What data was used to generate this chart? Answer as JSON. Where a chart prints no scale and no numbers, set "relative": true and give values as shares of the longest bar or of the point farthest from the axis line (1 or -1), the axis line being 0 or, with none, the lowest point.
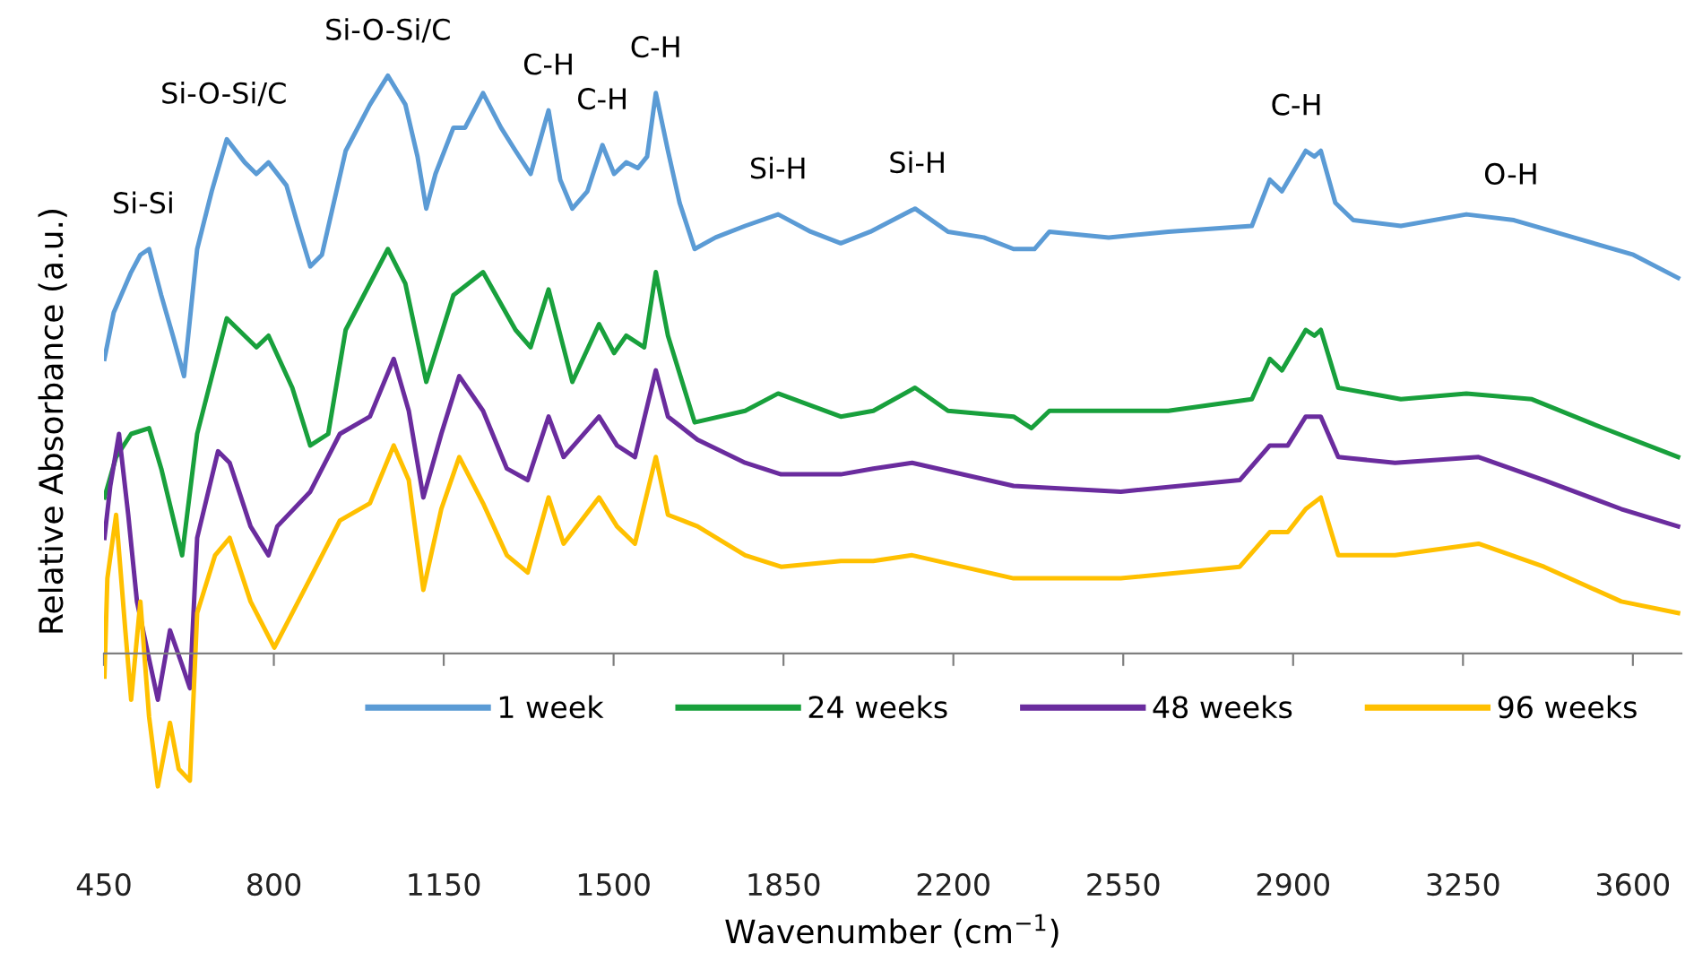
{
  "chart_data": {
    "type": "line",
    "relative": true,
    "xlabel": "Wavenumber (cm$^{−1}$)",
    "ylabel": "Relative Absorbance (a.u.)",
    "xlim": [
      450,
      3700
    ],
    "xticks": [
      450,
      800,
      1150,
      1500,
      1850,
      2200,
      2550,
      2900,
      3250,
      3600
    ],
    "grid": false,
    "legend": "bottom",
    "marker": "none",
    "line_style": "solid",
    "tick_labels": "x",
    "annotations": [
      {
        "text": "Si-Si",
        "x": 531,
        "y": 0.7
      },
      {
        "text": "Si-O-Si/C",
        "x": 697,
        "y": 0.89
      },
      {
        "text": "Si-O-Si/C",
        "x": 1035,
        "y": 1.0
      },
      {
        "text": "C-H",
        "x": 1366,
        "y": 0.94
      },
      {
        "text": "C-H",
        "x": 1477,
        "y": 0.88
      },
      {
        "text": "C-H",
        "x": 1587,
        "y": 0.97
      },
      {
        "text": "Si-H",
        "x": 1839,
        "y": 0.76
      },
      {
        "text": "Si-H",
        "x": 2126,
        "y": 0.77
      },
      {
        "text": "C-H",
        "x": 2907,
        "y": 0.87
      },
      {
        "text": "O-H",
        "x": 3349,
        "y": 0.75
      }
    ],
    "series": [
      {
        "name": "1 week",
        "color": "#5b9bd5",
        "x": [
          451,
          470,
          506,
          525,
          543,
          568,
          592,
          615,
          642,
          672,
          703,
          740,
          764,
          789,
          826,
          850,
          875,
          899,
          948,
          998,
          1035,
          1071,
          1096,
          1114,
          1133,
          1170,
          1194,
          1231,
          1268,
          1298,
          1329,
          1366,
          1390,
          1415,
          1446,
          1477,
          1501,
          1526,
          1550,
          1569,
          1587,
          1612,
          1636,
          1667,
          1710,
          1771,
          1839,
          1906,
          1968,
          2029,
          2121,
          2189,
          2263,
          2324,
          2367,
          2398,
          2520,
          2643,
          2815,
          2852,
          2877,
          2926,
          2944,
          2957,
          2987,
          3024,
          3122,
          3257,
          3355,
          3478,
          3601,
          3693
        ],
        "values": [
          0.51,
          0.59,
          0.66,
          0.69,
          0.7,
          0.62,
          0.55,
          0.48,
          0.7,
          0.8,
          0.89,
          0.85,
          0.83,
          0.85,
          0.81,
          0.74,
          0.67,
          0.69,
          0.87,
          0.95,
          1.0,
          0.95,
          0.86,
          0.77,
          0.83,
          0.91,
          0.91,
          0.97,
          0.91,
          0.87,
          0.83,
          0.94,
          0.82,
          0.77,
          0.8,
          0.88,
          0.83,
          0.85,
          0.84,
          0.86,
          0.97,
          0.87,
          0.78,
          0.7,
          0.72,
          0.74,
          0.76,
          0.73,
          0.71,
          0.73,
          0.77,
          0.73,
          0.72,
          0.7,
          0.7,
          0.73,
          0.72,
          0.73,
          0.74,
          0.82,
          0.8,
          0.87,
          0.86,
          0.87,
          0.78,
          0.75,
          0.74,
          0.76,
          0.75,
          0.72,
          0.69,
          0.65
        ]
      },
      {
        "name": "24 weeks",
        "color": "#18a03c",
        "x": [
          451,
          475,
          506,
          543,
          568,
          611,
          642,
          703,
          764,
          789,
          838,
          875,
          912,
          948,
          1035,
          1071,
          1114,
          1170,
          1231,
          1298,
          1329,
          1366,
          1415,
          1470,
          1501,
          1526,
          1563,
          1587,
          1612,
          1667,
          1771,
          1839,
          1968,
          2035,
          2121,
          2189,
          2324,
          2361,
          2398,
          2643,
          2815,
          2852,
          2877,
          2926,
          2944,
          2957,
          2993,
          3122,
          3257,
          3392,
          3539,
          3693
        ],
        "values": [
          0.27,
          0.34,
          0.38,
          0.39,
          0.32,
          0.17,
          0.38,
          0.58,
          0.53,
          0.55,
          0.46,
          0.36,
          0.38,
          0.56,
          0.7,
          0.64,
          0.47,
          0.62,
          0.66,
          0.56,
          0.53,
          0.63,
          0.47,
          0.57,
          0.52,
          0.55,
          0.53,
          0.66,
          0.55,
          0.4,
          0.42,
          0.45,
          0.41,
          0.42,
          0.46,
          0.42,
          0.41,
          0.39,
          0.42,
          0.42,
          0.44,
          0.51,
          0.49,
          0.56,
          0.55,
          0.56,
          0.46,
          0.44,
          0.45,
          0.44,
          0.39,
          0.34
        ]
      },
      {
        "name": "48 weeks",
        "color": "#6a2c9e",
        "x": [
          451,
          463,
          481,
          500,
          518,
          543,
          561,
          586,
          611,
          627,
          642,
          685,
          709,
          752,
          789,
          807,
          875,
          936,
          998,
          1047,
          1078,
          1108,
          1145,
          1182,
          1231,
          1280,
          1323,
          1366,
          1397,
          1470,
          1507,
          1544,
          1587,
          1612,
          1673,
          1771,
          1845,
          1968,
          2035,
          2115,
          2324,
          2545,
          2790,
          2852,
          2889,
          2926,
          2957,
          2993,
          3110,
          3282,
          3417,
          3576,
          3693
        ],
        "values": [
          0.2,
          0.29,
          0.38,
          0.24,
          0.09,
          -0.01,
          -0.08,
          0.04,
          -0.02,
          -0.06,
          0.2,
          0.35,
          0.33,
          0.22,
          0.17,
          0.22,
          0.28,
          0.38,
          0.41,
          0.51,
          0.42,
          0.27,
          0.38,
          0.48,
          0.42,
          0.32,
          0.3,
          0.41,
          0.34,
          0.41,
          0.36,
          0.34,
          0.49,
          0.41,
          0.37,
          0.33,
          0.31,
          0.31,
          0.32,
          0.33,
          0.29,
          0.28,
          0.3,
          0.36,
          0.36,
          0.41,
          0.41,
          0.34,
          0.33,
          0.34,
          0.3,
          0.25,
          0.22
        ]
      },
      {
        "name": "96 weeks",
        "color": "#ffc000",
        "x": [
          451,
          457,
          475,
          494,
          506,
          525,
          543,
          561,
          586,
          604,
          627,
          642,
          679,
          709,
          752,
          801,
          875,
          936,
          998,
          1047,
          1078,
          1108,
          1145,
          1182,
          1231,
          1280,
          1323,
          1366,
          1397,
          1470,
          1507,
          1544,
          1587,
          1612,
          1673,
          1771,
          1845,
          1968,
          2035,
          2115,
          2324,
          2545,
          2790,
          2852,
          2889,
          2926,
          2957,
          2993,
          3110,
          3282,
          3417,
          3576,
          3693
        ],
        "values": [
          -0.04,
          0.13,
          0.24,
          0.04,
          -0.08,
          0.09,
          -0.11,
          -0.23,
          -0.12,
          -0.2,
          -0.22,
          0.07,
          0.17,
          0.2,
          0.09,
          0.01,
          0.13,
          0.23,
          0.26,
          0.36,
          0.3,
          0.11,
          0.25,
          0.34,
          0.26,
          0.17,
          0.14,
          0.27,
          0.19,
          0.27,
          0.22,
          0.19,
          0.34,
          0.24,
          0.22,
          0.17,
          0.15,
          0.16,
          0.16,
          0.17,
          0.13,
          0.13,
          0.15,
          0.21,
          0.21,
          0.25,
          0.27,
          0.17,
          0.17,
          0.19,
          0.15,
          0.09,
          0.07
        ]
      }
    ]
  }
}
